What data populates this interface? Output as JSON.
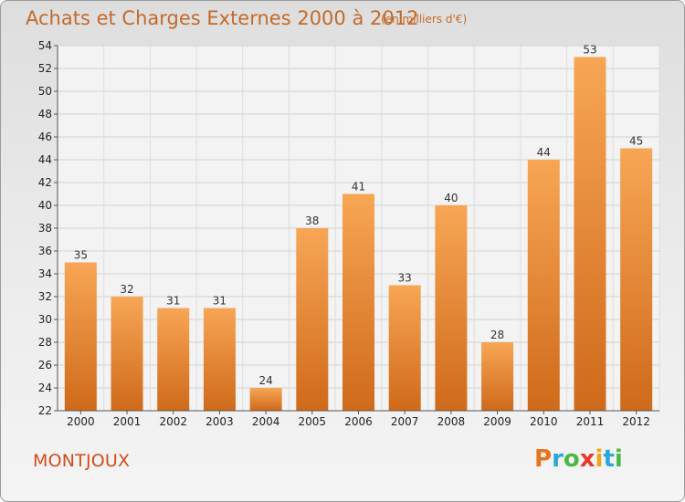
{
  "header": {
    "title": "Achats et Charges Externes 2000 à 2012",
    "unit": "(en milliers d'€)"
  },
  "footer": {
    "place": "MONTJOUX",
    "logo_letters": [
      "P",
      "r",
      "o",
      "x",
      "i",
      "t",
      "i"
    ],
    "logo_colors": [
      "#e8731c",
      "#2aa7d8",
      "#4cb848",
      "#e53a2b",
      "#f0a21c",
      "#2aa7d8",
      "#4cb848"
    ]
  },
  "chart_data": {
    "type": "bar",
    "title": "Achats et Charges Externes 2000 à 2012",
    "subtitle": "(en milliers d'€)",
    "xlabel": "",
    "ylabel": "",
    "categories": [
      "2000",
      "2001",
      "2002",
      "2003",
      "2004",
      "2005",
      "2006",
      "2007",
      "2008",
      "2009",
      "2010",
      "2011",
      "2012"
    ],
    "values": [
      35,
      32,
      31,
      31,
      24,
      38,
      41,
      33,
      40,
      28,
      44,
      53,
      45
    ],
    "ylim": [
      22,
      54
    ],
    "yticks": [
      22,
      24,
      26,
      28,
      30,
      32,
      34,
      36,
      38,
      40,
      42,
      44,
      46,
      48,
      50,
      52,
      54
    ],
    "grid": true,
    "bar_color": "#f0963c"
  }
}
